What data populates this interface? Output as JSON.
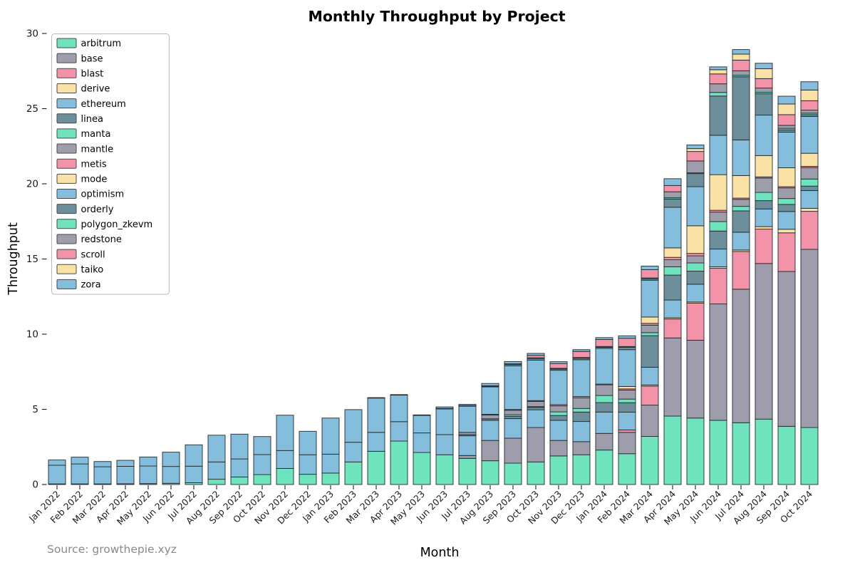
{
  "title": "Monthly Throughput by Project",
  "xlabel": "Month",
  "ylabel": "Throughput",
  "source": "Source: growthepie.xyz",
  "palette": {
    "mint": "#6fe3bd",
    "gray": "#9e9dac",
    "pink": "#f293a9",
    "yellow": "#fae2a6",
    "blue": "#85bedc",
    "slate": "#6d8e9b",
    "edge": "#24292b",
    "tick": "#1a1a1a",
    "source_gray": "#8a8a8a",
    "legend_border": "#b9b9b9"
  },
  "chart_data": {
    "type": "bar",
    "stacked": true,
    "grid": false,
    "legend_position": "upper left",
    "ylim": [
      0,
      30
    ],
    "yticks": [
      0,
      5,
      10,
      15,
      20,
      25,
      30
    ],
    "categories": [
      "Jan 2022",
      "Feb 2022",
      "Mar 2022",
      "Apr 2022",
      "May 2022",
      "Jun 2022",
      "Jul 2022",
      "Aug 2022",
      "Sep 2022",
      "Oct 2022",
      "Nov 2022",
      "Dec 2022",
      "Jan 2023",
      "Feb 2023",
      "Mar 2023",
      "Apr 2023",
      "May 2023",
      "Jun 2023",
      "Jul 2023",
      "Aug 2023",
      "Sep 2023",
      "Oct 2023",
      "Nov 2023",
      "Dec 2023",
      "Jan 2024",
      "Feb 2024",
      "Mar 2024",
      "Apr 2024",
      "May 2024",
      "Jun 2024",
      "Jul 2024",
      "Aug 2024",
      "Sep 2024",
      "Oct 2024"
    ],
    "series": [
      {
        "name": "arbitrum",
        "color": "#6fe3bd",
        "values": [
          0.04,
          0.04,
          0.04,
          0.05,
          0.06,
          0.08,
          0.12,
          0.35,
          0.5,
          0.66,
          1.07,
          0.68,
          0.76,
          1.5,
          2.21,
          2.89,
          2.13,
          1.98,
          1.74,
          1.58,
          1.42,
          1.5,
          1.9,
          1.98,
          2.29,
          2.05,
          3.2,
          4.55,
          4.42,
          4.27,
          4.11,
          4.35,
          3.87,
          3.79
        ]
      },
      {
        "name": "base",
        "color": "#9e9dac",
        "values": [
          0,
          0,
          0,
          0,
          0,
          0,
          0,
          0,
          0,
          0,
          0,
          0,
          0,
          0,
          0,
          0,
          0,
          0,
          0.19,
          1.35,
          1.66,
          2.29,
          1.03,
          0.87,
          1.11,
          1.42,
          2.08,
          5.2,
          5.18,
          7.74,
          8.88,
          10.35,
          10.3,
          11.85
        ]
      },
      {
        "name": "blast",
        "color": "#f293a9",
        "values": [
          0,
          0,
          0,
          0,
          0,
          0,
          0,
          0,
          0,
          0,
          0,
          0,
          0,
          0,
          0,
          0,
          0,
          0,
          0,
          0,
          0,
          0,
          0,
          0,
          0,
          0.16,
          1.26,
          1.26,
          2.46,
          2.37,
          2.51,
          2.29,
          2.57,
          2.53
        ]
      },
      {
        "name": "derive",
        "color": "#fae2a6",
        "values": [
          0,
          0,
          0,
          0,
          0,
          0,
          0,
          0,
          0,
          0,
          0,
          0,
          0,
          0,
          0,
          0,
          0,
          0,
          0,
          0,
          0,
          0,
          0,
          0,
          0,
          0,
          0.08,
          0.08,
          0.08,
          0.1,
          0.1,
          0.16,
          0.24,
          0.2
        ]
      },
      {
        "name": "ethereum",
        "color": "#85bedc",
        "values": [
          1.24,
          1.33,
          1.14,
          1.16,
          1.17,
          1.12,
          1.1,
          1.15,
          1.2,
          1.33,
          1.19,
          1.3,
          1.26,
          1.31,
          1.26,
          1.29,
          1.3,
          1.34,
          1.31,
          1.34,
          1.3,
          1.18,
          1.34,
          1.34,
          1.42,
          1.18,
          1.18,
          1.18,
          1.18,
          1.18,
          1.18,
          1.18,
          1.18,
          1.18
        ]
      },
      {
        "name": "linea",
        "color": "#6d8e9b",
        "values": [
          0,
          0,
          0,
          0,
          0,
          0,
          0,
          0,
          0,
          0,
          0,
          0,
          0,
          0,
          0,
          0,
          0,
          0,
          0.08,
          0.1,
          0.16,
          0.16,
          0.32,
          0.63,
          0.63,
          0.63,
          2.1,
          1.66,
          0.87,
          1.2,
          1.42,
          0.55,
          0.47,
          0.3
        ]
      },
      {
        "name": "manta",
        "color": "#6fe3bd",
        "values": [
          0,
          0,
          0,
          0,
          0,
          0,
          0,
          0,
          0,
          0,
          0,
          0,
          0,
          0,
          0,
          0,
          0,
          0,
          0,
          0,
          0.1,
          0.05,
          0.24,
          0.24,
          0.47,
          0.24,
          0.2,
          0.55,
          0.55,
          0.63,
          0.3,
          0.55,
          0.39,
          0.47
        ]
      },
      {
        "name": "mantle",
        "color": "#9e9dac",
        "values": [
          0,
          0,
          0,
          0,
          0,
          0,
          0,
          0,
          0,
          0,
          0,
          0,
          0,
          0,
          0,
          0,
          0,
          0,
          0.15,
          0.25,
          0.3,
          0.35,
          0.4,
          0.71,
          0.71,
          0.6,
          0.5,
          0.47,
          0.47,
          0.63,
          0.47,
          0.95,
          0.71,
          0.76
        ]
      },
      {
        "name": "metis",
        "color": "#f293a9",
        "values": [
          0,
          0,
          0,
          0,
          0,
          0,
          0,
          0,
          0,
          0,
          0,
          0,
          0,
          0,
          0,
          0,
          0,
          0,
          0,
          0.05,
          0.05,
          0.05,
          0.08,
          0.08,
          0.05,
          0.08,
          0.12,
          0.16,
          0.16,
          0.12,
          0.08,
          0.08,
          0.08,
          0.08
        ]
      },
      {
        "name": "mode",
        "color": "#fae2a6",
        "values": [
          0,
          0,
          0,
          0,
          0,
          0,
          0,
          0,
          0,
          0,
          0,
          0,
          0,
          0,
          0,
          0,
          0,
          0,
          0,
          0,
          0,
          0,
          0,
          0,
          0,
          0.16,
          0.42,
          0.63,
          1.84,
          2.37,
          1.5,
          1.42,
          1.26,
          0.87
        ]
      },
      {
        "name": "optimism",
        "color": "#85bedc",
        "values": [
          0.35,
          0.45,
          0.35,
          0.4,
          0.6,
          0.95,
          1.42,
          1.78,
          1.65,
          1.2,
          2.35,
          1.56,
          2.4,
          2.17,
          2.29,
          1.77,
          1.17,
          1.71,
          1.74,
          1.82,
          2.9,
          2.69,
          2.29,
          2.45,
          2.37,
          2.45,
          2.45,
          2.7,
          2.6,
          2.62,
          2.37,
          2.69,
          2.37,
          2.45
        ]
      },
      {
        "name": "orderly",
        "color": "#6d8e9b",
        "values": [
          0,
          0,
          0,
          0,
          0,
          0,
          0,
          0,
          0,
          0,
          0,
          0,
          0,
          0,
          0,
          0,
          0,
          0,
          0,
          0.05,
          0.1,
          0.11,
          0.08,
          0.1,
          0.08,
          0.16,
          0.1,
          0.55,
          0.87,
          2.61,
          4.2,
          1.42,
          0.15,
          0.12
        ]
      },
      {
        "name": "polygon_zkevm",
        "color": "#6fe3bd",
        "values": [
          0,
          0,
          0,
          0,
          0,
          0,
          0,
          0,
          0,
          0,
          0,
          0,
          0,
          0,
          0.02,
          0.03,
          0.03,
          0.03,
          0.04,
          0.03,
          0.04,
          0.05,
          0.05,
          0.05,
          0.05,
          0.05,
          0.05,
          0.08,
          0.05,
          0.24,
          0.1,
          0.1,
          0.1,
          0.1
        ]
      },
      {
        "name": "redstone",
        "color": "#9e9dac",
        "values": [
          0,
          0,
          0,
          0,
          0,
          0,
          0,
          0,
          0,
          0,
          0,
          0,
          0,
          0,
          0,
          0,
          0,
          0,
          0,
          0,
          0,
          0,
          0,
          0,
          0,
          0,
          0,
          0.4,
          0.79,
          0.57,
          0.3,
          0.28,
          0.2,
          0.2
        ]
      },
      {
        "name": "scroll",
        "color": "#f293a9",
        "values": [
          0,
          0,
          0,
          0,
          0,
          0,
          0,
          0,
          0,
          0,
          0,
          0,
          0,
          0,
          0,
          0,
          0,
          0,
          0,
          0,
          0,
          0.16,
          0.32,
          0.4,
          0.47,
          0.55,
          0.55,
          0.42,
          0.63,
          0.66,
          0.71,
          0.63,
          0.71,
          0.63
        ]
      },
      {
        "name": "taiko",
        "color": "#fae2a6",
        "values": [
          0,
          0,
          0,
          0,
          0,
          0,
          0,
          0,
          0,
          0,
          0,
          0,
          0,
          0,
          0,
          0,
          0,
          0,
          0,
          0,
          0,
          0,
          0,
          0,
          0,
          0,
          0,
          0,
          0.19,
          0.28,
          0.4,
          0.66,
          0.71,
          0.71
        ]
      },
      {
        "name": "zora",
        "color": "#85bedc",
        "values": [
          0,
          0,
          0,
          0,
          0,
          0,
          0,
          0,
          0,
          0,
          0,
          0,
          0,
          0,
          0,
          0,
          0,
          0.1,
          0.08,
          0.15,
          0.15,
          0.13,
          0.12,
          0.12,
          0.12,
          0.16,
          0.24,
          0.45,
          0.25,
          0.19,
          0.3,
          0.36,
          0.52,
          0.55
        ]
      }
    ]
  }
}
